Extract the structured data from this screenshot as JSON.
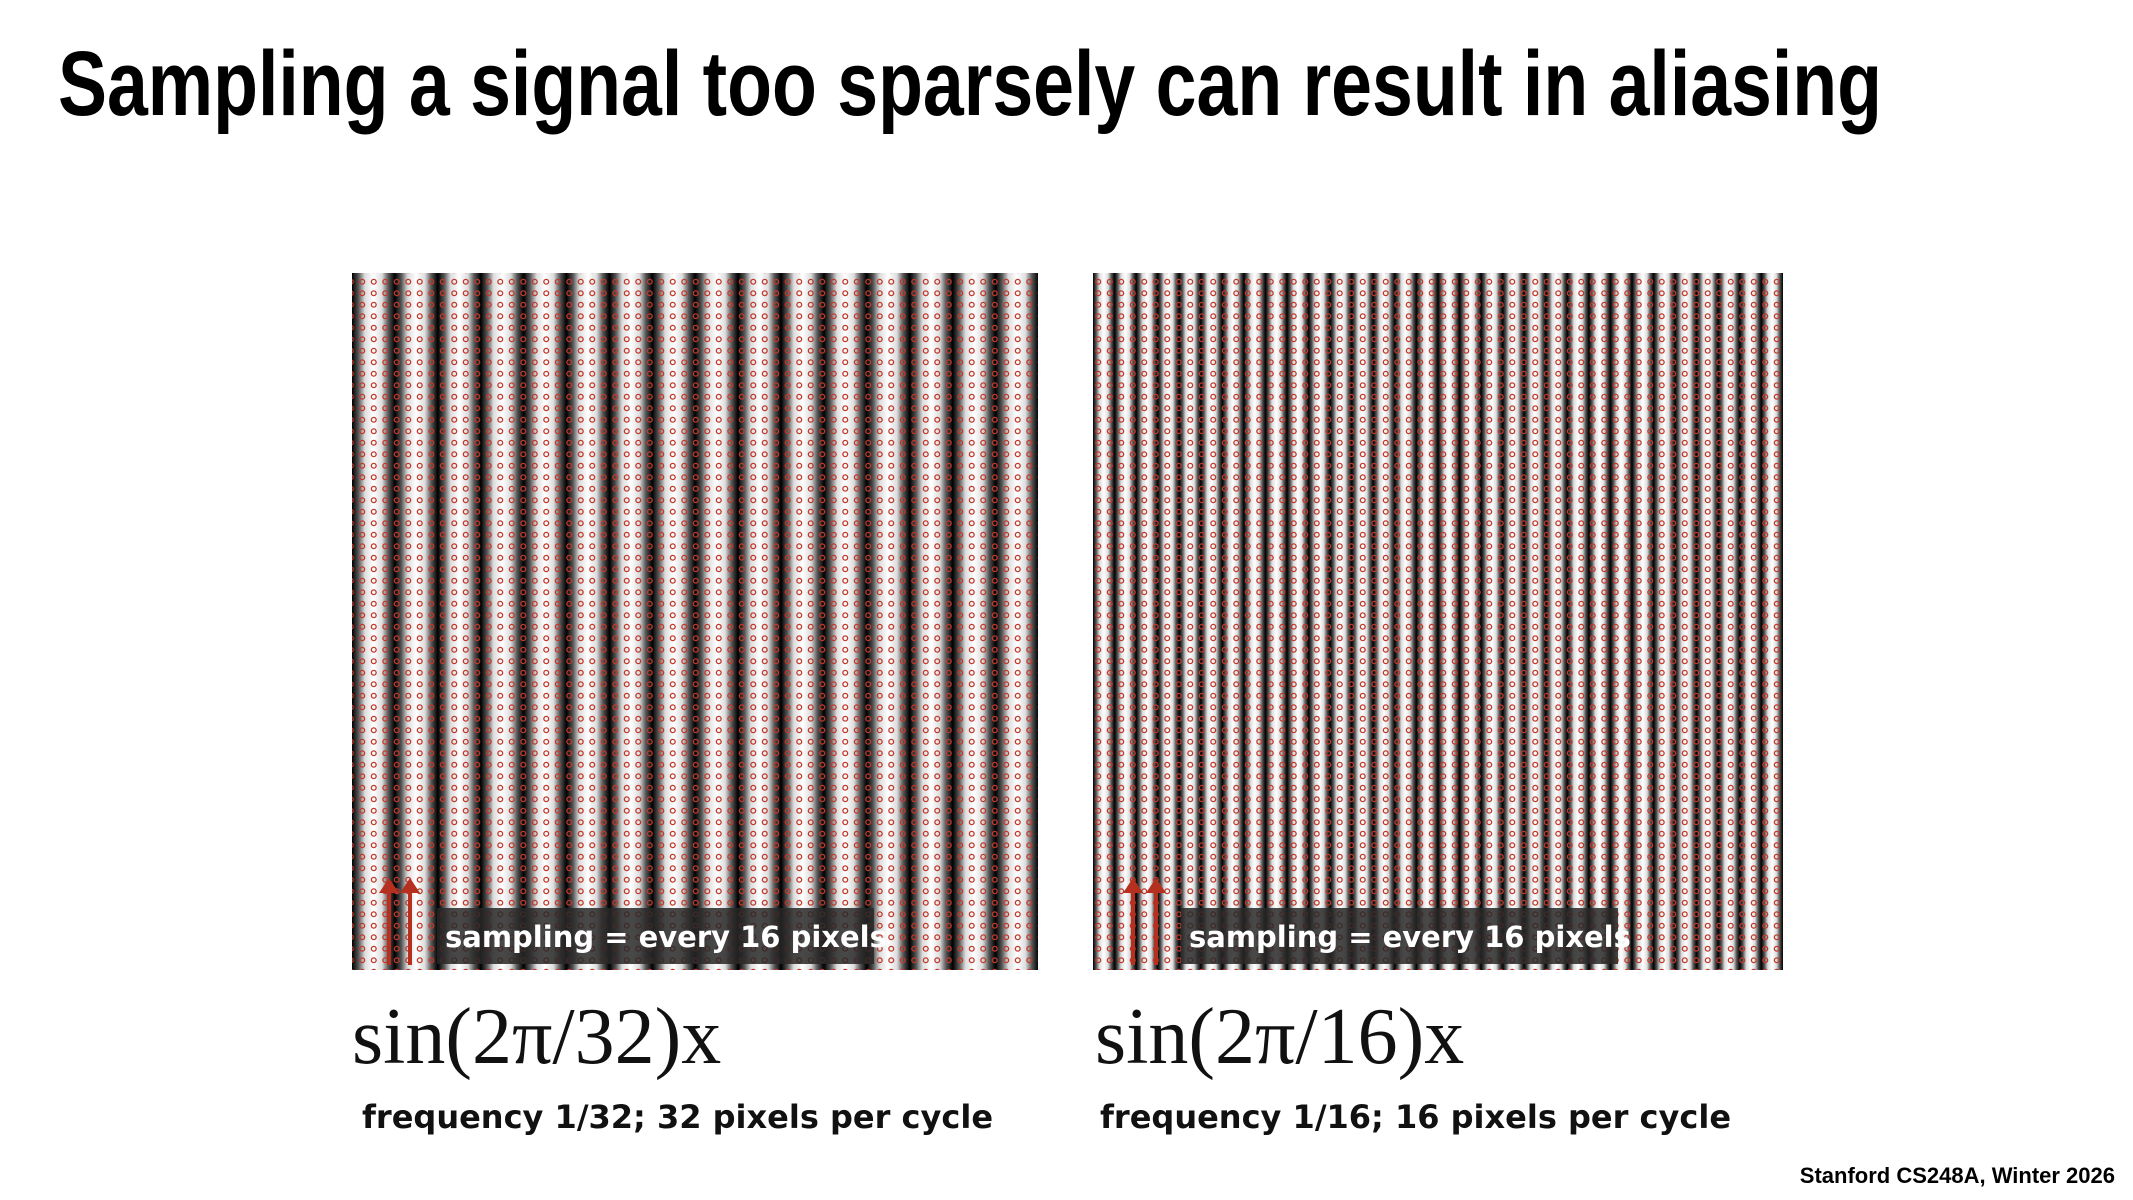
{
  "title": "Sampling a signal too sparsely can result in aliasing",
  "panels": [
    {
      "label": "sampling = every 16 pixels",
      "formula": "sin(2π/32)x",
      "caption": "frequency 1/32; 32 pixels per cycle"
    },
    {
      "label": "sampling = every 16 pixels",
      "formula": "sin(2π/16)x",
      "caption": "frequency 1/16; 16 pixels per cycle"
    }
  ],
  "footer": "Stanford CS248A, Winter 2026"
}
